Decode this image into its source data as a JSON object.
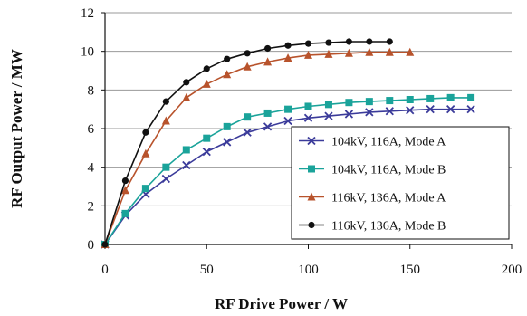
{
  "chart_data": {
    "type": "line",
    "title": "",
    "xlabel": "RF Drive Power / W",
    "ylabel": "RF Output Power / MW",
    "xlim": [
      0,
      200
    ],
    "ylim": [
      0,
      12
    ],
    "xticks": [
      "0",
      "50",
      "100",
      "150",
      "200"
    ],
    "yticks": [
      "0",
      "2",
      "4",
      "6",
      "8",
      "10",
      "12"
    ],
    "grid": "horizontal",
    "legend_position": "bottom-right",
    "series": [
      {
        "name": "104kV, 116A, Mode A",
        "color": "#3b3b9a",
        "marker": "x",
        "x": [
          0,
          10,
          20,
          30,
          40,
          50,
          60,
          70,
          80,
          90,
          100,
          110,
          120,
          130,
          140,
          150,
          160,
          170,
          180
        ],
        "y": [
          0,
          1.5,
          2.6,
          3.4,
          4.1,
          4.8,
          5.3,
          5.8,
          6.1,
          6.4,
          6.55,
          6.65,
          6.75,
          6.85,
          6.9,
          6.95,
          7.0,
          7.0,
          7.0
        ]
      },
      {
        "name": "104kV, 116A, Mode B",
        "color": "#1aa39a",
        "marker": "square",
        "x": [
          0,
          10,
          20,
          30,
          40,
          50,
          60,
          70,
          80,
          90,
          100,
          110,
          120,
          130,
          140,
          150,
          160,
          170,
          180
        ],
        "y": [
          0,
          1.6,
          2.9,
          4.0,
          4.9,
          5.5,
          6.1,
          6.6,
          6.8,
          7.0,
          7.15,
          7.25,
          7.35,
          7.4,
          7.45,
          7.5,
          7.55,
          7.6,
          7.6
        ]
      },
      {
        "name": "116kV, 136A, Mode A",
        "color": "#b8532c",
        "marker": "triangle",
        "x": [
          0,
          10,
          20,
          30,
          40,
          50,
          60,
          70,
          80,
          90,
          100,
          110,
          120,
          130,
          140,
          150
        ],
        "y": [
          0,
          2.8,
          4.7,
          6.4,
          7.6,
          8.3,
          8.8,
          9.2,
          9.45,
          9.65,
          9.8,
          9.85,
          9.9,
          9.95,
          9.95,
          9.95
        ]
      },
      {
        "name": "116kV, 136A, Mode B",
        "color": "#111111",
        "marker": "circle",
        "x": [
          0,
          10,
          20,
          30,
          40,
          50,
          60,
          70,
          80,
          90,
          100,
          110,
          120,
          130,
          140
        ],
        "y": [
          0,
          3.3,
          5.8,
          7.4,
          8.4,
          9.1,
          9.6,
          9.9,
          10.15,
          10.3,
          10.4,
          10.45,
          10.5,
          10.5,
          10.5
        ]
      }
    ]
  }
}
